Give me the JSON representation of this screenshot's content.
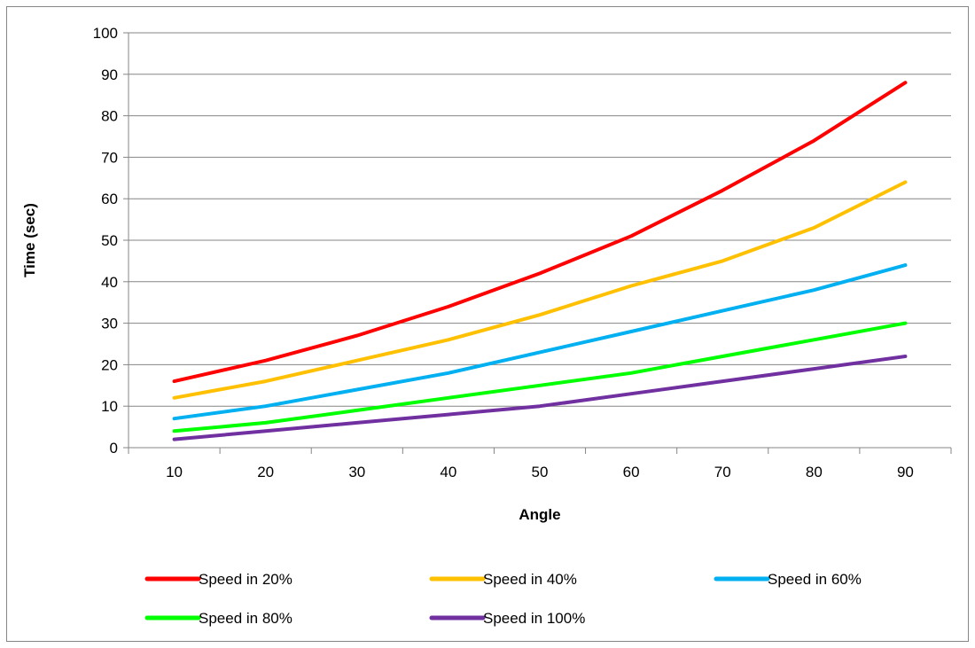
{
  "chart_data": {
    "type": "line",
    "title": "",
    "xlabel": "Angle",
    "ylabel": "Time (sec)",
    "categories": [
      "10",
      "20",
      "30",
      "40",
      "50",
      "60",
      "70",
      "80",
      "90"
    ],
    "ylim": [
      0,
      100
    ],
    "yticks": [
      "0",
      "10",
      "20",
      "30",
      "40",
      "50",
      "60",
      "70",
      "80",
      "90",
      "100"
    ],
    "grid": "horizontal",
    "legend_position": "bottom",
    "series": [
      {
        "name": "Speed in 20%",
        "color": "#ff0000",
        "values": [
          16,
          21,
          27,
          34,
          42,
          51,
          62,
          74,
          88
        ]
      },
      {
        "name": "Speed in 40%",
        "color": "#ffc000",
        "values": [
          12,
          16,
          21,
          26,
          32,
          39,
          45,
          53,
          64
        ]
      },
      {
        "name": "Speed in 60%",
        "color": "#00b0f0",
        "values": [
          7,
          10,
          14,
          18,
          23,
          28,
          33,
          38,
          44
        ]
      },
      {
        "name": "Speed in 80%",
        "color": "#00ff00",
        "values": [
          4,
          6,
          9,
          12,
          15,
          18,
          22,
          26,
          30
        ]
      },
      {
        "name": "Speed in 100%",
        "color": "#7030a0",
        "values": [
          2,
          4,
          6,
          8,
          10,
          13,
          16,
          19,
          22
        ]
      }
    ]
  }
}
